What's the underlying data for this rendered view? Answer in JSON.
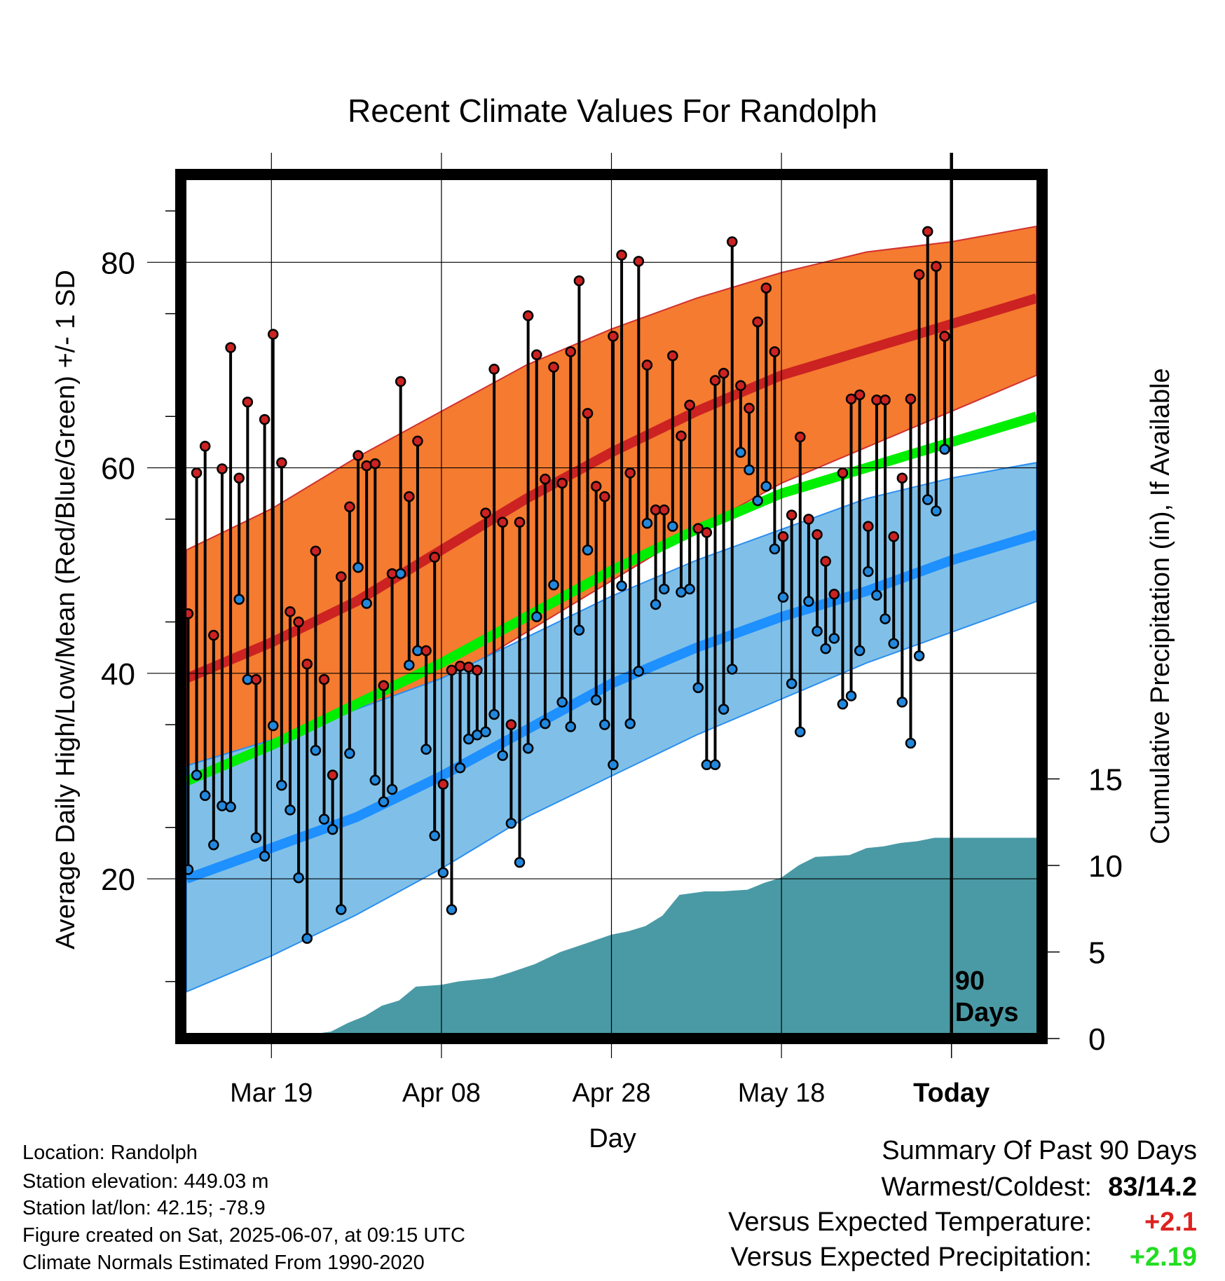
{
  "chart_data": {
    "type": "line",
    "title": "Recent Climate Values For Randolph",
    "xlabel": "Day",
    "ylabel_left": "Average Daily High/Low/Mean (Red/Blue/Green) +/- 1 SD",
    "ylabel_right": "Cumulative Precipitation (in), If Available",
    "x_ticks": [
      "Mar 19",
      "Apr 08",
      "Apr 28",
      "May 18",
      "Today"
    ],
    "x_tick_days": [
      10,
      30,
      50,
      70,
      90
    ],
    "xlim_days": [
      0,
      100
    ],
    "ylim_left": [
      5,
      88
    ],
    "y_ticks_left": [
      20,
      40,
      60,
      80
    ],
    "y_ticks_right": [
      0,
      5,
      10,
      15
    ],
    "ylim_right": [
      0,
      15
    ],
    "today_label": [
      "90",
      "Days"
    ],
    "normals": {
      "days": [
        0,
        10,
        20,
        30,
        40,
        50,
        60,
        70,
        80,
        90,
        100
      ],
      "high_mean": [
        39.5,
        43,
        47,
        52,
        57,
        61.5,
        65.5,
        69,
        71.5,
        74,
        76.5
      ],
      "high_sd_upper": [
        52,
        56,
        61,
        65.5,
        70,
        73.5,
        76.5,
        79,
        81,
        82,
        83.5
      ],
      "high_sd_lower": [
        27.5,
        31,
        35,
        39,
        44,
        49,
        54,
        58.5,
        62,
        65.5,
        69
      ],
      "low_mean": [
        20,
        23,
        26,
        30,
        34.5,
        39,
        42.5,
        45.5,
        48,
        51,
        53.5
      ],
      "low_sd_upper": [
        31,
        33.5,
        36.5,
        39.5,
        43.5,
        47.5,
        51,
        54,
        57,
        59,
        60.5
      ],
      "low_sd_lower": [
        9,
        12.5,
        16.5,
        21,
        26,
        30,
        34,
        37.5,
        41,
        44,
        47
      ],
      "daily_mean": [
        29.5,
        33,
        37,
        41,
        45.5,
        50,
        54,
        57.5,
        60,
        62.5,
        65
      ]
    },
    "series": [
      {
        "name": "High",
        "color": "#cc2222",
        "values": [
          45.8,
          59.5,
          62.1,
          43.7,
          59.9,
          71.7,
          59,
          66.4,
          39.4,
          64.7,
          73,
          60.5,
          46,
          45,
          40.9,
          51.9,
          39.4,
          30.1,
          49.4,
          56.2,
          61.2,
          60.2,
          60.4,
          38.8,
          49.7,
          68.4,
          57.2,
          62.6,
          42.2,
          51.3,
          29.2,
          40.3,
          40.7,
          40.6,
          40.3,
          55.6,
          69.6,
          54.7,
          35,
          54.7,
          74.8,
          71,
          58.9,
          69.8,
          58.5,
          71.3,
          78.2,
          65.3,
          58.2,
          57.2,
          72.8,
          80.7,
          59.5,
          80.1,
          70,
          55.9,
          55.9,
          70.9,
          63.1,
          66.1,
          54.1,
          53.7,
          68.5,
          69.2,
          82,
          68,
          65.8,
          74.2,
          77.5,
          71.3,
          53.3,
          55.4,
          63,
          55,
          53.5,
          50.9,
          47.7,
          59.5,
          66.7,
          67.1,
          54.3,
          66.6,
          66.6,
          53.3,
          59,
          66.7,
          78.8,
          83,
          79.6,
          72.8
        ]
      },
      {
        "name": "Low",
        "color": "#2288dd",
        "values": [
          20.9,
          30.1,
          28.1,
          23.3,
          27.1,
          27,
          47.2,
          39.4,
          24,
          22.2,
          34.9,
          29.1,
          26.7,
          20.1,
          14.2,
          32.5,
          25.8,
          24.8,
          17,
          32.2,
          50.3,
          46.8,
          29.6,
          27.5,
          28.7,
          49.7,
          40.8,
          42.2,
          32.6,
          24.2,
          20.6,
          17,
          30.8,
          33.6,
          34,
          34.3,
          36,
          32,
          25.4,
          21.6,
          32.7,
          45.5,
          35.1,
          48.6,
          37.2,
          34.8,
          44.2,
          52,
          37.4,
          35,
          31.1,
          48.5,
          35.1,
          40.2,
          54.6,
          46.7,
          48.2,
          54.3,
          47.9,
          48.2,
          38.6,
          31.1,
          31.1,
          36.5,
          40.4,
          61.5,
          59.8,
          56.8,
          58.2,
          52.1,
          47.4,
          39,
          34.3,
          47,
          44.1,
          42.4,
          43.4,
          37,
          37.8,
          42.2,
          49.9,
          47.6,
          45.3,
          42.9,
          37.2,
          33.2,
          41.7,
          56.9,
          55.8,
          61.8
        ]
      }
    ],
    "precipitation": {
      "days": [
        0,
        10,
        14,
        17,
        19,
        21,
        23,
        25,
        27,
        30,
        32,
        36,
        38,
        41,
        44,
        47,
        50,
        52,
        54,
        56,
        58,
        61,
        63,
        66,
        68,
        70,
        72,
        74,
        78,
        80,
        82,
        84,
        86,
        88,
        90,
        100
      ],
      "values": [
        0,
        0,
        0.2,
        0.4,
        0.9,
        1.3,
        1.9,
        2.2,
        3.0,
        3.1,
        3.3,
        3.5,
        3.8,
        4.3,
        5.0,
        5.5,
        6.0,
        6.2,
        6.5,
        7.1,
        8.3,
        8.5,
        8.5,
        8.6,
        9.0,
        9.3,
        10.0,
        10.5,
        10.6,
        11.0,
        11.1,
        11.3,
        11.4,
        11.6,
        11.6,
        11.6
      ]
    }
  },
  "info": {
    "location": "Location: Randolph",
    "elevation": "Station elevation: 449.03 m",
    "latlon": "Station lat/lon: 42.15; -78.9",
    "created": "Figure created on Sat, 2025-06-07, at 09:15 UTC",
    "normals": "Climate Normals Estimated From 1990-2020"
  },
  "summary": {
    "heading": "Summary Of Past 90 Days",
    "warmest_label": "Warmest/Coldest:",
    "warmest_value": "83/14.2",
    "temp_label": "Versus Expected Temperature:",
    "temp_value": "+2.1",
    "temp_color": "#dd2222",
    "precip_label": "Versus Expected Precipitation:",
    "precip_value": "+2.19",
    "precip_color": "#22dd22"
  },
  "colors": {
    "high_band": "#f47b30",
    "high_mean": "#cc2222",
    "low_band": "#80c0e8",
    "low_mean": "#1e90ff",
    "daily_mean": "#00ee00",
    "precip": "#4a9aa5",
    "high_dot": "#cc2222",
    "low_dot": "#2288dd"
  }
}
